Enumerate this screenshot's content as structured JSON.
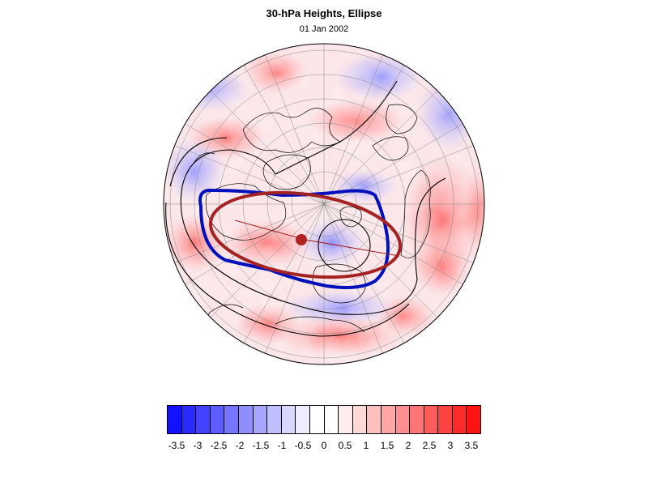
{
  "title": "30-hPa Heights, Ellipse",
  "subtitle": "01 Jan 2002",
  "colors": {
    "negative": "#0000ff",
    "positive": "#ff0000",
    "contour_line": "#000000",
    "vortex_edge": "#0011bb",
    "ellipse": "#a52222",
    "center_marker": "#b22222"
  },
  "colorbar": {
    "labels": [
      "-3.5",
      "-3",
      "-2.5",
      "-2",
      "-1.5",
      "-1",
      "-0.5",
      "0",
      "0.5",
      "1",
      "1.5",
      "2",
      "2.5",
      "3",
      "3.5"
    ],
    "colors": [
      "#1212ff",
      "#2a2aff",
      "#4343ff",
      "#5c5cff",
      "#7575ff",
      "#8e8eff",
      "#a6a6ff",
      "#bfbfff",
      "#d8d8ff",
      "#ededff",
      "#ffffff",
      "#ffffff",
      "#ffeded",
      "#ffd8d8",
      "#ffbfbf",
      "#ffa6a6",
      "#ff8e8e",
      "#ff7575",
      "#ff5c5c",
      "#ff4343",
      "#ff2a2a",
      "#ff1212"
    ]
  },
  "map": {
    "projection": "north-polar-orthographic",
    "graticule": true,
    "coastlines": true
  }
}
